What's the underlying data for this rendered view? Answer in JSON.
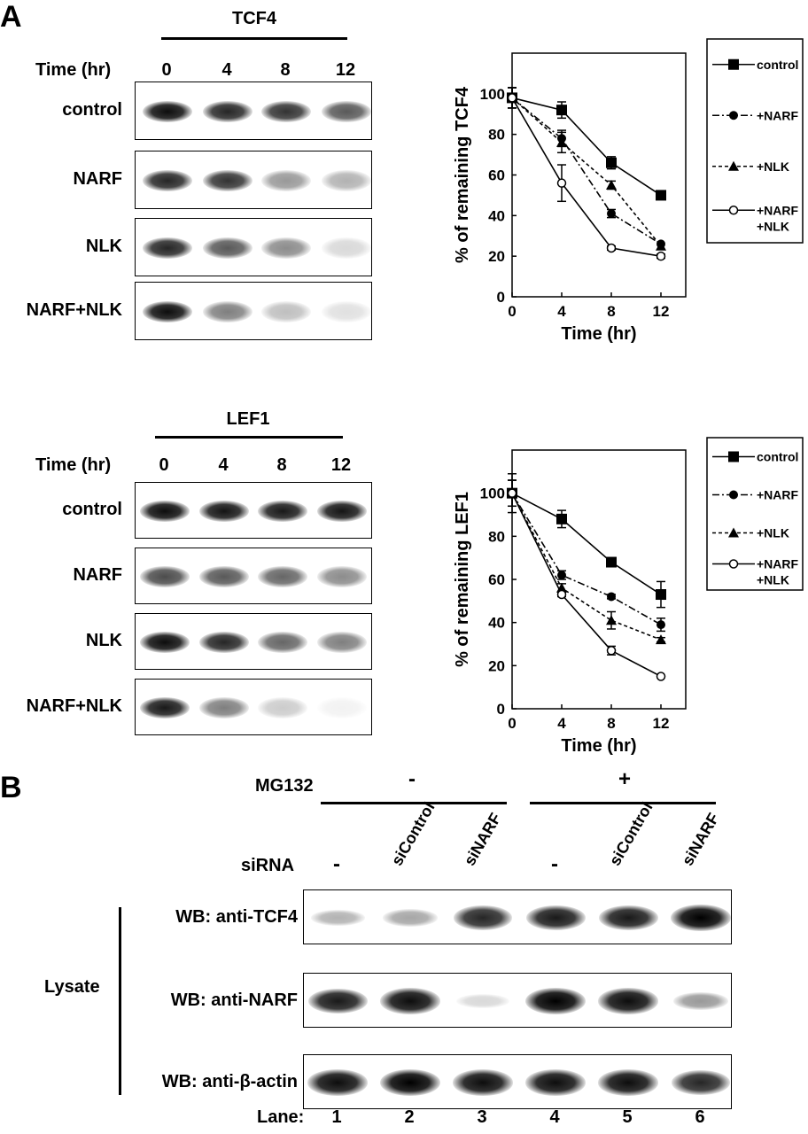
{
  "panel_a": {
    "letter": "A",
    "tcf4": {
      "protein": "TCF4",
      "time_label": "Time (hr)",
      "times": [
        "0",
        "4",
        "8",
        "12"
      ],
      "rows": [
        {
          "label": "control",
          "intensity": [
            0.95,
            0.85,
            0.8,
            0.65
          ]
        },
        {
          "label": "NARF",
          "intensity": [
            0.85,
            0.8,
            0.4,
            0.3
          ]
        },
        {
          "label": "NLK",
          "intensity": [
            0.85,
            0.65,
            0.45,
            0.15
          ]
        },
        {
          "label": "NARF+NLK",
          "intensity": [
            0.95,
            0.5,
            0.25,
            0.12
          ]
        }
      ]
    },
    "lef1": {
      "protein": "LEF1",
      "time_label": "Time (hr)",
      "times": [
        "0",
        "4",
        "8",
        "12"
      ],
      "rows": [
        {
          "label": "control",
          "intensity": [
            0.95,
            0.92,
            0.9,
            0.92
          ]
        },
        {
          "label": "NARF",
          "intensity": [
            0.7,
            0.65,
            0.6,
            0.45
          ]
        },
        {
          "label": "NLK",
          "intensity": [
            0.95,
            0.85,
            0.6,
            0.5
          ]
        },
        {
          "label": "NARF+NLK",
          "intensity": [
            0.9,
            0.5,
            0.2,
            0.05
          ]
        }
      ]
    }
  },
  "chart_data": [
    {
      "type": "line",
      "ylabel": "% of remaining TCF4",
      "xlabel": "Time (hr)",
      "x": [
        0,
        4,
        8,
        12
      ],
      "xticks": [
        "0",
        "4",
        "8",
        "12"
      ],
      "yticks": [
        "0",
        "20",
        "40",
        "60",
        "80",
        "100"
      ],
      "xlim": [
        0,
        14
      ],
      "ylim": [
        0,
        120
      ],
      "legend_position": "right",
      "series": [
        {
          "name": "control",
          "legend_lines": [
            "control"
          ],
          "marker": "square",
          "dash": "",
          "values": [
            98,
            92,
            66,
            50
          ],
          "errors": [
            5,
            4,
            3,
            0
          ]
        },
        {
          "name": "+NARF",
          "legend_lines": [
            "+NARF"
          ],
          "marker": "circle",
          "dash": "8,3,2,3",
          "values": [
            98,
            78,
            41,
            26
          ],
          "errors": [
            5,
            4,
            2,
            0
          ]
        },
        {
          "name": "+NLK",
          "legend_lines": [
            "+NLK"
          ],
          "marker": "triangle",
          "dash": "4,3",
          "values": [
            98,
            76,
            55,
            25
          ],
          "errors": [
            5,
            5,
            2,
            0
          ]
        },
        {
          "name": "+NARF\n+NLK",
          "legend_lines": [
            "+NARF",
            "+NLK"
          ],
          "marker": "open-circle",
          "dash": "",
          "values": [
            98,
            56,
            24,
            20
          ],
          "errors": [
            5,
            9,
            1,
            1
          ]
        }
      ]
    },
    {
      "type": "line",
      "ylabel": "% of remaining LEF1",
      "xlabel": "Time (hr)",
      "x": [
        0,
        4,
        8,
        12
      ],
      "xticks": [
        "0",
        "4",
        "8",
        "12"
      ],
      "yticks": [
        "0",
        "20",
        "40",
        "60",
        "80",
        "100"
      ],
      "xlim": [
        0,
        14
      ],
      "ylim": [
        0,
        120
      ],
      "legend_position": "right",
      "series": [
        {
          "name": "control",
          "legend_lines": [
            "control"
          ],
          "marker": "square",
          "dash": "",
          "values": [
            100,
            88,
            68,
            53
          ],
          "errors": [
            9,
            4,
            1,
            6
          ]
        },
        {
          "name": "+NARF",
          "legend_lines": [
            "+NARF"
          ],
          "marker": "circle",
          "dash": "8,3,2,3",
          "values": [
            100,
            62,
            52,
            39
          ],
          "errors": [
            6,
            2,
            1,
            3
          ]
        },
        {
          "name": "+NLK",
          "legend_lines": [
            "+NLK"
          ],
          "marker": "triangle",
          "dash": "4,3",
          "values": [
            100,
            56,
            41,
            32
          ],
          "errors": [
            6,
            2,
            4,
            1
          ]
        },
        {
          "name": "+NARF\n+NLK",
          "legend_lines": [
            "+NARF",
            "+NLK"
          ],
          "marker": "open-circle",
          "dash": "",
          "values": [
            100,
            53,
            27,
            15
          ],
          "errors": [
            6,
            1,
            2,
            0
          ]
        }
      ]
    }
  ],
  "panel_b": {
    "letter": "B",
    "mg132_label": "MG132",
    "mg132_groups": [
      "-",
      "+"
    ],
    "sirna_label": "siRNA",
    "sirna": [
      "-",
      "siControl",
      "siNARF",
      "-",
      "siControl",
      "siNARF"
    ],
    "lysate_label": "Lysate",
    "blots": [
      {
        "label": "WB: anti-TCF4",
        "intensity": [
          0.3,
          0.35,
          0.85,
          0.9,
          0.9,
          1.0
        ]
      },
      {
        "label": "WB: anti-NARF",
        "intensity": [
          0.9,
          0.95,
          0.15,
          1.0,
          0.95,
          0.4
        ]
      },
      {
        "label": "WB: anti-β-actin",
        "intensity": [
          0.95,
          1.0,
          0.95,
          0.95,
          0.95,
          0.85
        ]
      }
    ],
    "lane_label": "Lane:",
    "lanes": [
      "1",
      "2",
      "3",
      "4",
      "5",
      "6"
    ]
  }
}
